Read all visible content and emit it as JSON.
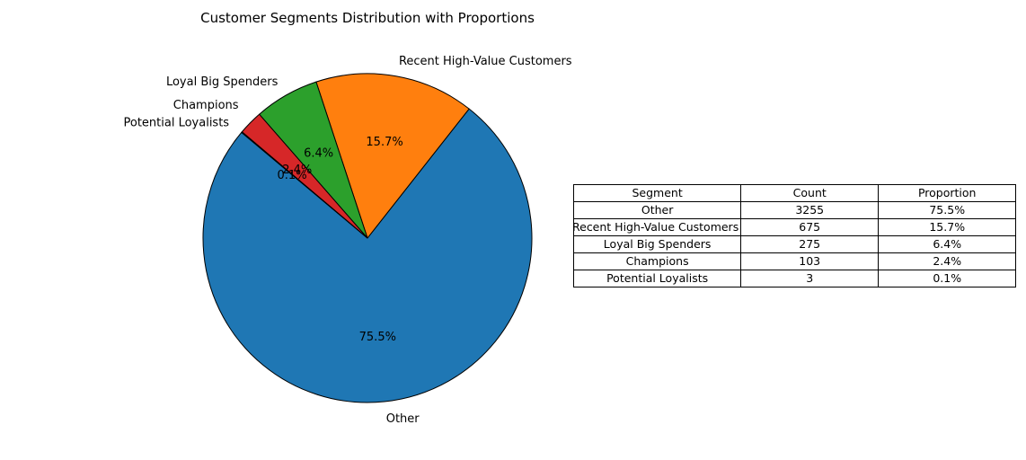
{
  "chart_data": {
    "type": "pie",
    "title": "Customer Segments Distribution with Proportions",
    "slices": [
      {
        "label": "Other",
        "value": 3255,
        "pct_label": "75.5%",
        "color": "#1f77b4"
      },
      {
        "label": "Recent High-Value Customers",
        "value": 675,
        "pct_label": "15.7%",
        "color": "#ff7f0e"
      },
      {
        "label": "Loyal Big Spenders",
        "value": 275,
        "pct_label": "6.4%",
        "color": "#2ca02c"
      },
      {
        "label": "Champions",
        "value": 103,
        "pct_label": "2.4%",
        "color": "#d62728"
      },
      {
        "label": "Potential Loyalists",
        "value": 3,
        "pct_label": "0.1%",
        "color": "#9467bd"
      }
    ],
    "start_angle_deg": 140,
    "direction": "counterclockwise"
  },
  "table": {
    "headers": [
      "Segment",
      "Count",
      "Proportion"
    ],
    "rows": [
      [
        "Other",
        "3255",
        "75.5%"
      ],
      [
        "Recent High-Value Customers",
        "675",
        "15.7%"
      ],
      [
        "Loyal Big Spenders",
        "275",
        "6.4%"
      ],
      [
        "Champions",
        "103",
        "2.4%"
      ],
      [
        "Potential Loyalists",
        "3",
        "0.1%"
      ]
    ]
  }
}
